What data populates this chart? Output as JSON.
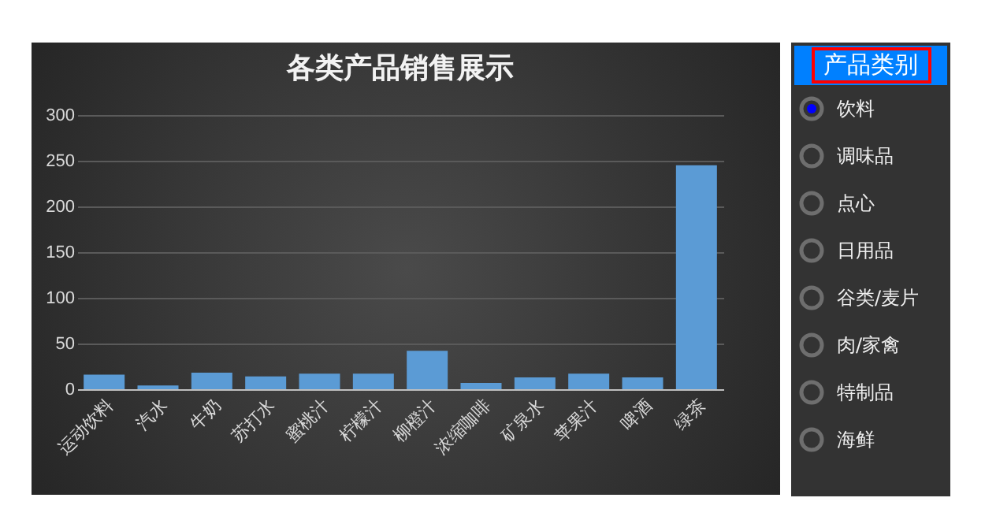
{
  "chart_data": [
    {
      "type": "bar",
      "title": "各类产品销售展示",
      "categories": [
        "运动饮料",
        "汽水",
        "牛奶",
        "苏打水",
        "蜜桃汁",
        "柠檬汁",
        "柳橙汁",
        "浓缩咖啡",
        "矿泉水",
        "苹果汁",
        "啤酒",
        "绿茶"
      ],
      "values": [
        16,
        4,
        18,
        14,
        17,
        17,
        42,
        7,
        13,
        17,
        13,
        245
      ],
      "color": "#5b9bd5",
      "ylim": [
        0,
        300
      ],
      "yticks": [
        0,
        50,
        100,
        150,
        200,
        250,
        300
      ],
      "grid": "y"
    },
    {
      "type": "other",
      "title": "产品类别",
      "categories": [
        "饮料",
        "调味品",
        "点心",
        "日用品",
        "谷类/麦片",
        "肉/家禽",
        "特制品",
        "海鲜"
      ]
    }
  ]
}
